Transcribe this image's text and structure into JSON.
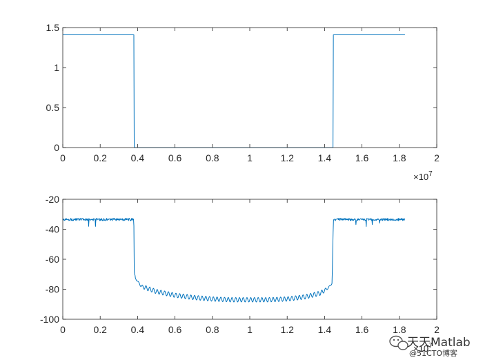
{
  "watermark": {
    "text": "天天Matlab",
    "subtext": "@51CTO博客",
    "icon": "wechat-icon"
  },
  "colors": {
    "line": "#0072BD",
    "axes": "#262626",
    "background": "#ffffff"
  },
  "chart_data": [
    {
      "type": "line",
      "xlim": [
        0,
        2
      ],
      "ylim": [
        0,
        1.5
      ],
      "x_ticks": [
        "0",
        "0.2",
        "0.4",
        "0.6",
        "0.8",
        "1",
        "1.2",
        "1.4",
        "1.6",
        "1.8",
        "2"
      ],
      "y_ticks": [
        "0",
        "0.5",
        "1",
        "1.5"
      ],
      "x_exponent": {
        "base": "×10",
        "power": "7"
      },
      "grid": false,
      "series": [
        {
          "x": [
            0,
            0.38,
            0.382,
            1.445,
            1.447,
            1.83
          ],
          "y": [
            1.41,
            1.41,
            0,
            0,
            1.41,
            1.41
          ]
        }
      ]
    },
    {
      "type": "line",
      "xlim": [
        0,
        2
      ],
      "ylim": [
        -100,
        -20
      ],
      "x_ticks": [
        "0",
        "0.2",
        "0.4",
        "0.6",
        "0.8",
        "1",
        "1.2",
        "1.4",
        "1.6",
        "1.8",
        "2"
      ],
      "y_ticks": [
        "-100",
        "-80",
        "-60",
        "-40",
        "-20"
      ],
      "x_exponent": {
        "base": "×10",
        "power": "7"
      },
      "grid": false,
      "series": [
        {
          "x": [
            0,
            0.38,
            0.382,
            0.39,
            0.42,
            0.5,
            0.6,
            0.7,
            0.8,
            0.9,
            1.0,
            1.1,
            1.2,
            1.3,
            1.38,
            1.42,
            1.44,
            1.447,
            1.83
          ],
          "y": [
            -33.5,
            -33.5,
            -68,
            -73,
            -78,
            -81.5,
            -84,
            -85.5,
            -86.5,
            -87,
            -87,
            -87,
            -86.5,
            -85,
            -82.5,
            -79,
            -76,
            -33.5,
            -33.5
          ],
          "ripple": {
            "x_start": 0.39,
            "x_end": 1.44,
            "amplitude": 1.5,
            "period": 0.02
          },
          "noise": {
            "amplitude": 0.8
          }
        }
      ]
    }
  ]
}
